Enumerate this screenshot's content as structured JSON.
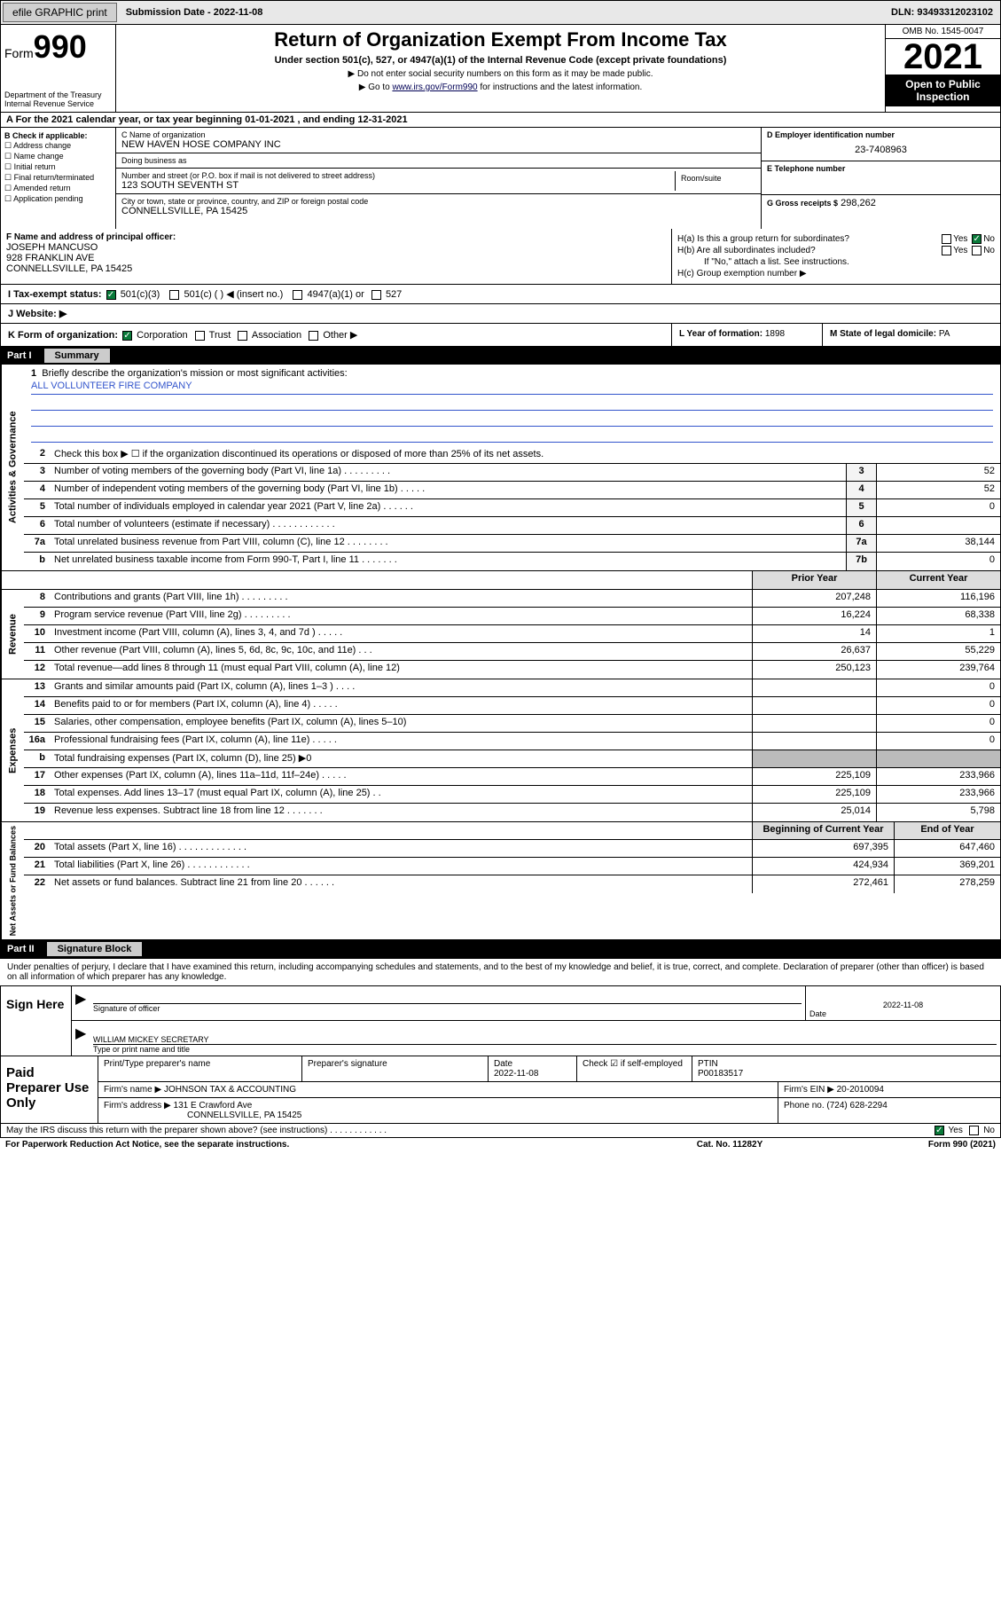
{
  "topbar": {
    "efile": "efile GRAPHIC print",
    "submission": "Submission Date - 2022-11-08",
    "dln": "DLN: 93493312023102"
  },
  "header": {
    "form_prefix": "Form",
    "form_number": "990",
    "title": "Return of Organization Exempt From Income Tax",
    "subtitle": "Under section 501(c), 527, or 4947(a)(1) of the Internal Revenue Code (except private foundations)",
    "note1": "▶ Do not enter social security numbers on this form as it may be made public.",
    "note2_pre": "▶ Go to ",
    "note2_link": "www.irs.gov/Form990",
    "note2_post": " for instructions and the latest information.",
    "dept": "Department of the Treasury",
    "irs": "Internal Revenue Service",
    "omb": "OMB No. 1545-0047",
    "year": "2021",
    "open": "Open to Public Inspection"
  },
  "row_a": "A For the 2021 calendar year, or tax year beginning 01-01-2021    , and ending 12-31-2021",
  "col_b": {
    "hdr": "B Check if applicable:",
    "items": [
      "Address change",
      "Name change",
      "Initial return",
      "Final return/terminated",
      "Amended return",
      "Application pending"
    ]
  },
  "col_c": {
    "name_lbl": "C Name of organization",
    "name": "NEW HAVEN HOSE COMPANY INC",
    "dba_lbl": "Doing business as",
    "dba": "",
    "street_lbl": "Number and street (or P.O. box if mail is not delivered to street address)",
    "street": "123 SOUTH SEVENTH ST",
    "room_lbl": "Room/suite",
    "room": "",
    "city_lbl": "City or town, state or province, country, and ZIP or foreign postal code",
    "city": "CONNELLSVILLE, PA  15425"
  },
  "col_d": {
    "ein_lbl": "D Employer identification number",
    "ein": "23-7408963",
    "tel_lbl": "E Telephone number",
    "tel": "",
    "gross_lbl": "G Gross receipts $",
    "gross": "298,262"
  },
  "row_f": {
    "lbl": "F  Name and address of principal officer:",
    "name": "JOSEPH MANCUSO",
    "addr1": "928 FRANKLIN AVE",
    "addr2": "CONNELLSVILLE, PA  15425"
  },
  "row_h": {
    "a": "H(a)  Is this a group return for subordinates?",
    "a_yes": "Yes",
    "a_no": "No",
    "b": "H(b)  Are all subordinates included?",
    "b_yes": "Yes",
    "b_no": "No",
    "b_note": "If \"No,\" attach a list. See instructions.",
    "c": "H(c)  Group exemption number ▶"
  },
  "row_i": {
    "lbl": "I   Tax-exempt status:",
    "o1": "501(c)(3)",
    "o2": "501(c) (   ) ◀ (insert no.)",
    "o3": "4947(a)(1) or",
    "o4": "527"
  },
  "row_j": {
    "lbl": "J   Website: ▶"
  },
  "row_k": {
    "lbl": "K Form of organization:",
    "o1": "Corporation",
    "o2": "Trust",
    "o3": "Association",
    "o4": "Other ▶"
  },
  "row_l": {
    "lbl": "L Year of formation:",
    "val": "1898"
  },
  "row_m": {
    "lbl": "M State of legal domicile:",
    "val": "PA"
  },
  "part1": {
    "name": "Part I",
    "title": "Summary"
  },
  "summary": {
    "side1": "Activities & Governance",
    "q1": "Briefly describe the organization's mission or most significant activities:",
    "q1_val": "ALL VOLLUNTEER FIRE COMPANY",
    "q2": "Check this box ▶ ☐  if the organization discontinued its operations or disposed of more than 25% of its net assets.",
    "rows_gov": [
      {
        "n": "3",
        "t": "Number of voting members of the governing body (Part VI, line 1a)   .    .    .    .    .    .    .    .    .",
        "box": "3",
        "v": "52"
      },
      {
        "n": "4",
        "t": "Number of independent voting members of the governing body (Part VI, line 1b)   .    .    .    .    .",
        "box": "4",
        "v": "52"
      },
      {
        "n": "5",
        "t": "Total number of individuals employed in calendar year 2021 (Part V, line 2a)   .    .    .    .    .    .",
        "box": "5",
        "v": "0"
      },
      {
        "n": "6",
        "t": "Total number of volunteers (estimate if necessary)   .    .    .    .    .    .    .    .    .    .    .    .",
        "box": "6",
        "v": ""
      },
      {
        "n": "7a",
        "t": "Total unrelated business revenue from Part VIII, column (C), line 12   .    .    .    .    .    .    .    .",
        "box": "7a",
        "v": "38,144"
      },
      {
        "n": "b",
        "t": "Net unrelated business taxable income from Form 990-T, Part I, line 11   .    .    .    .    .    .    .",
        "box": "7b",
        "v": "0"
      }
    ],
    "hdr_prior": "Prior Year",
    "hdr_curr": "Current Year",
    "side2": "Revenue",
    "rows_rev": [
      {
        "n": "8",
        "t": "Contributions and grants (Part VIII, line 1h)   .    .    .    .    .    .    .    .    .",
        "p": "207,248",
        "c": "116,196"
      },
      {
        "n": "9",
        "t": "Program service revenue (Part VIII, line 2g)   .    .    .    .    .    .    .    .    .",
        "p": "16,224",
        "c": "68,338"
      },
      {
        "n": "10",
        "t": "Investment income (Part VIII, column (A), lines 3, 4, and 7d )   .    .    .    .    .",
        "p": "14",
        "c": "1"
      },
      {
        "n": "11",
        "t": "Other revenue (Part VIII, column (A), lines 5, 6d, 8c, 9c, 10c, and 11e)   .    .    .",
        "p": "26,637",
        "c": "55,229"
      },
      {
        "n": "12",
        "t": "Total revenue—add lines 8 through 11 (must equal Part VIII, column (A), line 12)",
        "p": "250,123",
        "c": "239,764"
      }
    ],
    "side3": "Expenses",
    "rows_exp": [
      {
        "n": "13",
        "t": "Grants and similar amounts paid (Part IX, column (A), lines 1–3 )   .    .    .    .",
        "p": "",
        "c": "0"
      },
      {
        "n": "14",
        "t": "Benefits paid to or for members (Part IX, column (A), line 4)   .    .    .    .    .",
        "p": "",
        "c": "0"
      },
      {
        "n": "15",
        "t": "Salaries, other compensation, employee benefits (Part IX, column (A), lines 5–10)",
        "p": "",
        "c": "0"
      },
      {
        "n": "16a",
        "t": "Professional fundraising fees (Part IX, column (A), line 11e)   .    .    .    .    .",
        "p": "",
        "c": "0"
      },
      {
        "n": "b",
        "t": "Total fundraising expenses (Part IX, column (D), line 25) ▶0",
        "p": "shade",
        "c": "shade"
      },
      {
        "n": "17",
        "t": "Other expenses (Part IX, column (A), lines 11a–11d, 11f–24e)   .    .    .    .    .",
        "p": "225,109",
        "c": "233,966"
      },
      {
        "n": "18",
        "t": "Total expenses. Add lines 13–17 (must equal Part IX, column (A), line 25)   .    .",
        "p": "225,109",
        "c": "233,966"
      },
      {
        "n": "19",
        "t": "Revenue less expenses. Subtract line 18 from line 12   .    .    .    .    .    .    .",
        "p": "25,014",
        "c": "5,798"
      }
    ],
    "side4": "Net Assets or Fund Balances",
    "hdr_beg": "Beginning of Current Year",
    "hdr_end": "End of Year",
    "rows_net": [
      {
        "n": "20",
        "t": "Total assets (Part X, line 16)   .    .    .    .    .    .    .    .    .    .    .    .    .",
        "p": "697,395",
        "c": "647,460"
      },
      {
        "n": "21",
        "t": "Total liabilities (Part X, line 26)   .    .    .    .    .    .    .    .    .    .    .    .",
        "p": "424,934",
        "c": "369,201"
      },
      {
        "n": "22",
        "t": "Net assets or fund balances. Subtract line 21 from line 20   .    .    .    .    .    .",
        "p": "272,461",
        "c": "278,259"
      }
    ]
  },
  "part2": {
    "name": "Part II",
    "title": "Signature Block"
  },
  "sig": {
    "intro": "Under penalties of perjury, I declare that I have examined this return, including accompanying schedules and statements, and to the best of my knowledge and belief, it is true, correct, and complete. Declaration of preparer (other than officer) is based on all information of which preparer has any knowledge.",
    "here": "Sign Here",
    "sig_lbl": "Signature of officer",
    "date_lbl": "Date",
    "date_val": "2022-11-08",
    "name": "WILLIAM MICKEY SECRETARY",
    "name_lbl": "Type or print name and title"
  },
  "prep": {
    "lbl": "Paid Preparer Use Only",
    "r1": {
      "c1": "Print/Type preparer's name",
      "c2": "Preparer's signature",
      "c3": "Date",
      "c3v": "2022-11-08",
      "c4": "Check ☑ if self-employed",
      "c5": "PTIN",
      "c5v": "P00183517"
    },
    "r2": {
      "c1": "Firm's name    ▶",
      "c1v": "JOHNSON TAX & ACCOUNTING",
      "c2": "Firm's EIN ▶",
      "c2v": "20-2010094"
    },
    "r3": {
      "c1": "Firm's address ▶",
      "c1v": "131 E Crawford Ave",
      "c2": "Phone no.",
      "c2v": "(724) 628-2294"
    },
    "r3b": "CONNELLSVILLE, PA  15425"
  },
  "footer": {
    "q": "May the IRS discuss this return with the preparer shown above? (see instructions)   .    .    .    .    .    .    .    .    .    .    .    .",
    "yes": "Yes",
    "no": "No",
    "pra": "For Paperwork Reduction Act Notice, see the separate instructions.",
    "cat": "Cat. No. 11282Y",
    "form": "Form 990 (2021)"
  }
}
